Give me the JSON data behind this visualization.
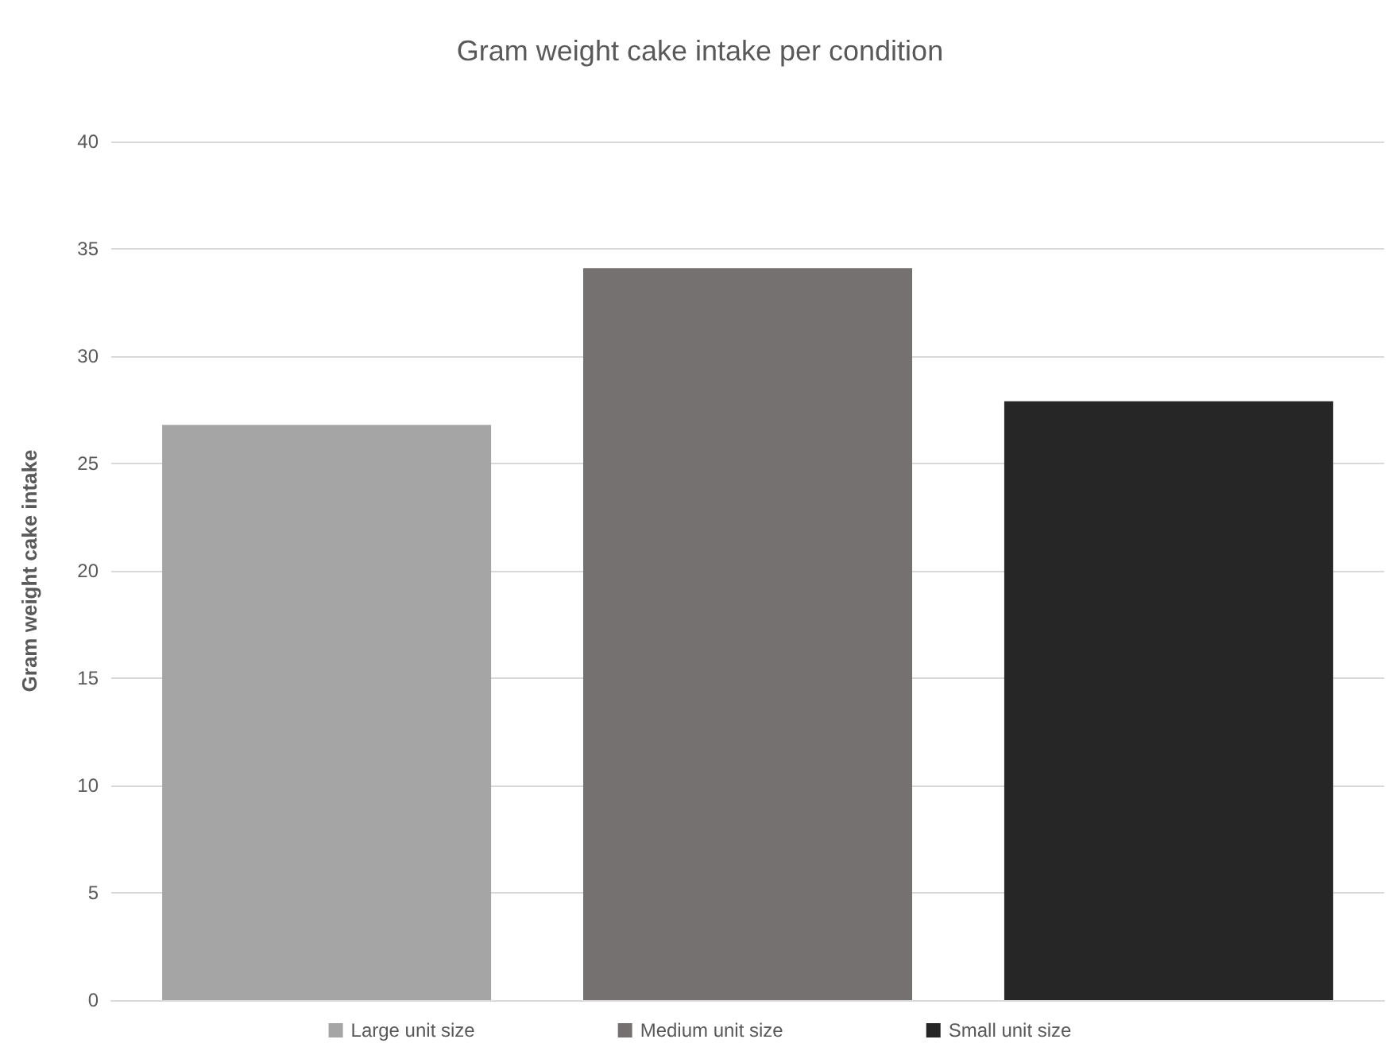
{
  "chart_data": {
    "type": "bar",
    "title": "Gram weight cake intake per condition",
    "ylabel": "Gram weight cake intake",
    "categories": [
      null
    ],
    "series": [
      {
        "name": "Large unit size",
        "color": "#a5a5a5",
        "values": [
          26.8
        ]
      },
      {
        "name": "Medium unit size",
        "color": "#767171",
        "values": [
          34.1
        ]
      },
      {
        "name": "Small unit size",
        "color": "#262626",
        "values": [
          27.9
        ]
      }
    ],
    "ylim": [
      0,
      40
    ],
    "yticks": [
      0,
      5,
      10,
      15,
      20,
      25,
      30,
      35,
      40
    ],
    "grid": "y",
    "legend": "bottom"
  }
}
